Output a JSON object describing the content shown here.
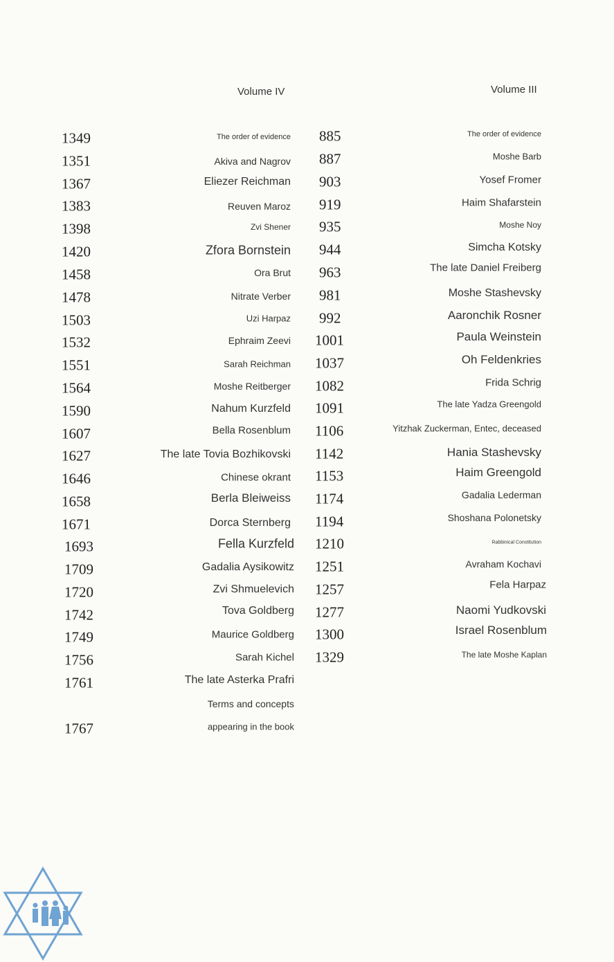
{
  "volume_iv": {
    "title": "Volume IV",
    "page_numbers": [
      "1349",
      "1351",
      "1367",
      "1383",
      "1398",
      "1420",
      "1458",
      "1478",
      "1503",
      "1532",
      "1551",
      "1564",
      "1590",
      "1607",
      "1627",
      "1646",
      "1658",
      "1671",
      "1693",
      "1709",
      "1720",
      "1742",
      "1749",
      "1756",
      "1761",
      "1767"
    ],
    "entries": [
      "The order of evidence",
      "Akiva and Nagrov",
      "Eliezer Reichman",
      "Reuven Maroz",
      "Zvi Shener",
      "Zfora Bornstein",
      "Ora Brut",
      "Nitrate Verber",
      "Uzi Harpaz",
      "Ephraim Zeevi",
      "Sarah Reichman",
      "Moshe Reitberger",
      "Nahum Kurzfeld",
      "Bella Rosenblum",
      "The late Tovia Bozhikovski",
      "Chinese okrant",
      "Berla Bleiweiss",
      "Dorca Sternberg",
      "Fella Kurzfeld",
      "Gadalia Aysikowitz",
      "Zvi Shmuelevich",
      "Tova Goldberg",
      "Maurice Goldberg",
      "Sarah Kichel",
      "The late Asterka Prafri",
      "Terms and concepts",
      "appearing in the book"
    ]
  },
  "volume_iii": {
    "title": "Volume III",
    "page_numbers": [
      "885",
      "887",
      "903",
      "919",
      "935",
      "944",
      "963",
      "981",
      "992",
      "1001",
      "1037",
      "1082",
      "1091",
      "1106",
      "1142",
      "1153",
      "1174",
      "1194",
      "1210",
      "1251",
      "1257",
      "1277",
      "1300",
      "1329"
    ],
    "entries": [
      "The order of evidence",
      "Moshe Barb",
      "Yosef Fromer",
      "Haim Shafarstein",
      "Moshe Noy",
      "Simcha Kotsky",
      "The late Daniel Freiberg",
      "Moshe Stashevsky",
      "Aaronchik Rosner",
      "Paula Weinstein",
      "Oh Feldenkries",
      "Frida Schrig",
      "The late Yadza Greengold",
      "Yitzhak Zuckerman, Entec, deceased",
      "Hania Stashevsky",
      "Haim Greengold",
      "Gadalia Lederman",
      "Shoshana Polonetsky",
      "Rabbinical Constitution",
      "Avraham Kochavi",
      "Fela Harpaz",
      "Naomi Yudkovski",
      "Israel Rosenblum",
      "The late Moshe Kaplan"
    ]
  },
  "logo": {
    "icon": "star-of-david-family-icon",
    "color": "#6fa3d2"
  }
}
